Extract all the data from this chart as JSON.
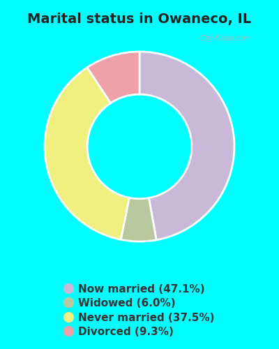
{
  "title": "Marital status in Owaneco, IL",
  "slices": [
    {
      "label": "Now married (47.1%)",
      "value": 47.1,
      "color": "#c9b8d8"
    },
    {
      "label": "Widowed (6.0%)",
      "value": 6.0,
      "color": "#b8c9a0"
    },
    {
      "label": "Never married (37.5%)",
      "value": 37.5,
      "color": "#f0f080"
    },
    {
      "label": "Divorced (9.3%)",
      "value": 9.3,
      "color": "#f0a0a8"
    }
  ],
  "background_color": "#00ffff",
  "chart_panel_color": "#e8f5ee",
  "title_fontsize": 14,
  "legend_fontsize": 11,
  "watermark": "City-Data.com",
  "donut_width": 0.45,
  "start_angle": 90
}
